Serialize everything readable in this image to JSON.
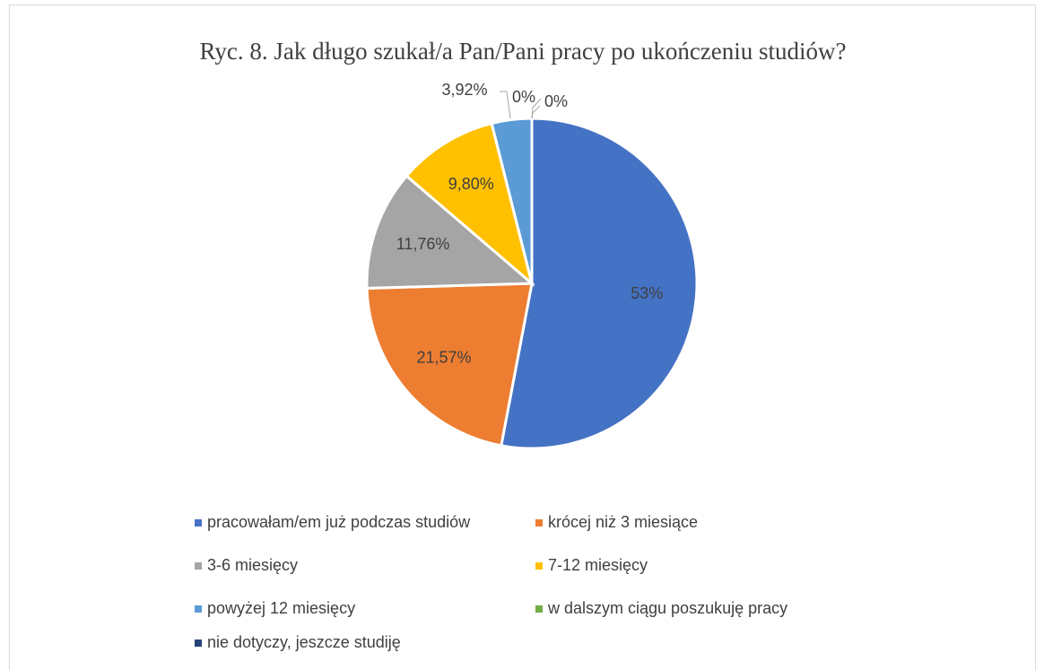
{
  "chart_data": {
    "type": "pie",
    "title": "Ryc. 8. Jak długo szukał/a Pan/Pani pracy po ukończeniu studiów?",
    "categories": [
      "pracowałam/em już podczas studiów",
      "krócej niż 3 miesiące",
      "3-6 miesięcy",
      "7-12 miesięcy",
      "powyżej 12 miesięcy",
      "w dalszym ciągu poszukuję pracy",
      "nie dotyczy, jeszcze studiję"
    ],
    "values": [
      53,
      21.57,
      11.76,
      9.8,
      3.92,
      0,
      0
    ],
    "value_labels": [
      "53%",
      "21,57%",
      "11,76%",
      "9,80%",
      "3,92%",
      "0%",
      "0%"
    ],
    "colors": [
      "#4472c4",
      "#ed7d31",
      "#a5a5a5",
      "#ffc000",
      "#5b9bd5",
      "#70ad47",
      "#264478"
    ],
    "legend": "bottom"
  }
}
